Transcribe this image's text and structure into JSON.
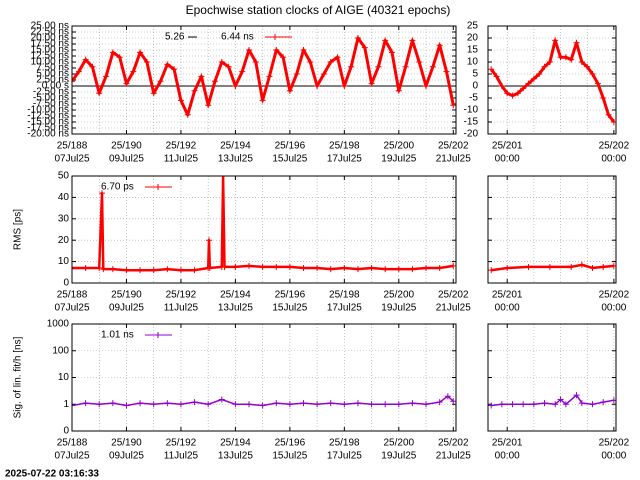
{
  "timestamp": "2025-07-22 03:16:33",
  "chart_data": [
    {
      "type": "line",
      "title": "Epochwise station clocks of AIGE (40321 epochs)",
      "legend": [
        "5.26",
        "6.44 ns"
      ],
      "grid": true,
      "zero_line": true,
      "xlim": [
        188,
        202.1
      ],
      "xticks": [
        {
          "value": 188,
          "label": "25/188",
          "date": "07Jul25"
        },
        {
          "value": 190,
          "label": "25/190",
          "date": "09Jul25"
        },
        {
          "value": 192,
          "label": "25/192",
          "date": "11Jul25"
        },
        {
          "value": 194,
          "label": "25/194",
          "date": "13Jul25"
        },
        {
          "value": 196,
          "label": "25/196",
          "date": "15Jul25"
        },
        {
          "value": 198,
          "label": "25/198",
          "date": "17Jul25"
        },
        {
          "value": 200,
          "label": "25/200",
          "date": "19Jul25"
        },
        {
          "value": 202,
          "label": "25/202",
          "date": "21Jul25"
        }
      ],
      "xminor": [
        189,
        191,
        193,
        195,
        197,
        199,
        201
      ],
      "ylim": [
        -20,
        25
      ],
      "yticks": [
        {
          "value": 25,
          "label": "25.00 ns"
        },
        {
          "value": 22.5,
          "label": "22.50 ns"
        },
        {
          "value": 20,
          "label": "20.00 ns"
        },
        {
          "value": 17.5,
          "label": "17.50 ns"
        },
        {
          "value": 15,
          "label": "15.00 ns"
        },
        {
          "value": 12.5,
          "label": "12.50 ns"
        },
        {
          "value": 10,
          "label": "10.00 ns"
        },
        {
          "value": 7.5,
          "label": "7.50 ns"
        },
        {
          "value": 5,
          "label": "5.00 ns"
        },
        {
          "value": 2.5,
          "label": "2.50 ns"
        },
        {
          "value": 0,
          "label": "0.00  s"
        },
        {
          "value": -2.5,
          "label": "-2.50 ns"
        },
        {
          "value": -5,
          "label": "-5.00 ns"
        },
        {
          "value": -7.5,
          "label": "-7.50 ns"
        },
        {
          "value": -10,
          "label": "-10.00 ns"
        },
        {
          "value": -12.5,
          "label": "-12.50 ns"
        },
        {
          "value": -15,
          "label": "-15.00 ns"
        },
        {
          "value": -17.5,
          "label": "-17.50 ns"
        },
        {
          "value": -20,
          "label": "-20.00 ns"
        }
      ],
      "series": [
        {
          "color": "#ff0000",
          "x": [
            188,
            188.25,
            188.5,
            188.75,
            189,
            189.25,
            189.5,
            189.75,
            190,
            190.25,
            190.5,
            190.75,
            191,
            191.25,
            191.5,
            191.75,
            192,
            192.25,
            192.5,
            192.75,
            193,
            193.25,
            193.5,
            193.75,
            194,
            194.25,
            194.5,
            194.75,
            195,
            195.25,
            195.5,
            195.75,
            196,
            196.25,
            196.5,
            196.75,
            197,
            197.25,
            197.5,
            197.75,
            198,
            198.25,
            198.5,
            198.75,
            199,
            199.25,
            199.5,
            199.75,
            200,
            200.25,
            200.5,
            200.75,
            201,
            201.25,
            201.5,
            201.75,
            202
          ],
          "values": [
            2,
            6,
            11,
            8,
            -3,
            4,
            14,
            12,
            1,
            6,
            14,
            10,
            -3,
            2,
            9,
            7,
            -6,
            -12,
            -2,
            4,
            -8,
            2,
            10,
            8,
            0,
            6,
            15,
            10,
            -6,
            4,
            15,
            12,
            -2,
            5,
            15,
            10,
            0,
            5,
            10,
            12,
            0,
            8,
            20,
            16,
            1,
            8,
            19,
            14,
            -2,
            8,
            19,
            10,
            0,
            8,
            17,
            6,
            -8
          ]
        }
      ]
    },
    {
      "type": "line",
      "grid": true,
      "zero_line": true,
      "xlim": [
        200.82,
        202.02
      ],
      "xticks": [
        {
          "value": 201,
          "label": "25/201",
          "date": "00:00"
        },
        {
          "value": 202,
          "label": "25/202",
          "date": "00:00"
        }
      ],
      "xminor": [
        201.25,
        201.5,
        201.75
      ],
      "ylim": [
        -20,
        25
      ],
      "yticks": [
        25,
        20,
        15,
        10,
        5,
        0,
        -5,
        -10,
        -15,
        -20
      ],
      "series": [
        {
          "color": "#ff0000",
          "x": [
            200.85,
            200.9,
            200.95,
            201.0,
            201.05,
            201.1,
            201.15,
            201.2,
            201.25,
            201.3,
            201.35,
            201.4,
            201.45,
            201.5,
            201.55,
            201.6,
            201.65,
            201.7,
            201.75,
            201.8,
            201.85,
            201.9,
            201.95,
            202.0
          ],
          "values": [
            7,
            4,
            0,
            -3,
            -4,
            -3,
            -1,
            1,
            3,
            5,
            8,
            10,
            19,
            12,
            12,
            11,
            18,
            10,
            8,
            5,
            1,
            -5,
            -12,
            -15
          ]
        }
      ]
    },
    {
      "type": "line",
      "ylabel": "RMS [ps]",
      "legend": [
        "6.70 ps"
      ],
      "grid": true,
      "xlim": [
        188,
        202.1
      ],
      "xticks": [
        {
          "value": 188,
          "label": "25/188",
          "date": "07Jul25"
        },
        {
          "value": 190,
          "label": "25/190",
          "date": "09Jul25"
        },
        {
          "value": 192,
          "label": "25/192",
          "date": "11Jul25"
        },
        {
          "value": 194,
          "label": "25/194",
          "date": "13Jul25"
        },
        {
          "value": 196,
          "label": "25/196",
          "date": "15Jul25"
        },
        {
          "value": 198,
          "label": "25/198",
          "date": "17Jul25"
        },
        {
          "value": 200,
          "label": "25/200",
          "date": "19Jul25"
        },
        {
          "value": 202,
          "label": "25/202",
          "date": "21Jul25"
        }
      ],
      "xminor": [
        189,
        191,
        193,
        195,
        197,
        199,
        201
      ],
      "ylim": [
        0,
        50
      ],
      "yticks": [
        0,
        10,
        20,
        30,
        40,
        50
      ],
      "series": [
        {
          "color": "#ff0000",
          "x": [
            188,
            188.5,
            189,
            189.1,
            189.15,
            189.5,
            190,
            190.5,
            191,
            191.5,
            192,
            192.5,
            193,
            193.03,
            193.06,
            193.5,
            193.55,
            193.6,
            194,
            194.5,
            195,
            195.5,
            196,
            196.5,
            197,
            197.5,
            198,
            198.5,
            199,
            199.5,
            200,
            200.5,
            201,
            201.5,
            202
          ],
          "values": [
            7,
            7,
            7,
            42,
            6.5,
            6.5,
            6,
            6,
            6,
            6.5,
            6,
            6,
            7,
            20,
            7,
            7.5,
            50,
            7.5,
            7.5,
            8,
            7.5,
            7.5,
            7.5,
            7,
            7,
            6.5,
            7,
            6.5,
            7,
            6.5,
            6.5,
            6.5,
            7,
            7,
            8
          ]
        }
      ]
    },
    {
      "type": "line",
      "grid": true,
      "ytick_labels": false,
      "xlim": [
        200.82,
        202.02
      ],
      "xticks": [
        {
          "value": 201,
          "label": "25/201",
          "date": "00:00"
        },
        {
          "value": 202,
          "label": "25/202",
          "date": "00:00"
        }
      ],
      "xminor": [
        201.25,
        201.5,
        201.75
      ],
      "ylim": [
        0,
        50
      ],
      "yticks": [
        0,
        10,
        20,
        30,
        40,
        50
      ],
      "series": [
        {
          "color": "#ff0000",
          "x": [
            200.85,
            201.0,
            201.2,
            201.4,
            201.6,
            201.7,
            201.8,
            201.9,
            202.0
          ],
          "values": [
            6,
            7,
            7.5,
            7.5,
            7.5,
            8.5,
            7,
            7.5,
            8
          ]
        }
      ]
    },
    {
      "type": "line",
      "ylabel": "Sig. of lin. fit/h [ns]",
      "legend": [
        "1.01 ns"
      ],
      "grid": true,
      "log_y": true,
      "xlim": [
        188,
        202.1
      ],
      "xticks": [
        {
          "value": 188,
          "label": "25/188",
          "date": "07Jul25"
        },
        {
          "value": 190,
          "label": "25/190",
          "date": "09Jul25"
        },
        {
          "value": 192,
          "label": "25/192",
          "date": "11Jul25"
        },
        {
          "value": 194,
          "label": "25/194",
          "date": "13Jul25"
        },
        {
          "value": 196,
          "label": "25/196",
          "date": "15Jul25"
        },
        {
          "value": 198,
          "label": "25/198",
          "date": "17Jul25"
        },
        {
          "value": 200,
          "label": "25/200",
          "date": "19Jul25"
        },
        {
          "value": 202,
          "label": "25/202",
          "date": "21Jul25"
        }
      ],
      "xminor": [
        189,
        191,
        193,
        195,
        197,
        199,
        201
      ],
      "ylim": [
        0.1,
        1000
      ],
      "yticks": [
        {
          "value": 0.1,
          "label": "0"
        },
        1,
        10,
        100,
        1000
      ],
      "series": [
        {
          "color": "#9400d3",
          "x": [
            188,
            188.5,
            189,
            189.5,
            190,
            190.5,
            191,
            191.5,
            192,
            192.5,
            193,
            193.5,
            194,
            194.5,
            195,
            195.5,
            196,
            196.5,
            197,
            197.5,
            198,
            198.5,
            199,
            199.5,
            200,
            200.5,
            201,
            201.5,
            201.8,
            202
          ],
          "values": [
            0.9,
            1.1,
            1.0,
            1.1,
            0.9,
            1.1,
            1.0,
            1.1,
            1.0,
            1.2,
            1.0,
            1.5,
            1.0,
            1.0,
            0.9,
            1.1,
            1.0,
            1.1,
            1.0,
            1.1,
            1.0,
            1.1,
            1.0,
            1.0,
            1.0,
            1.1,
            1.0,
            1.2,
            2.0,
            1.3
          ]
        }
      ]
    },
    {
      "type": "line",
      "grid": true,
      "log_y": true,
      "ytick_labels": false,
      "xlim": [
        200.82,
        202.02
      ],
      "xticks": [
        {
          "value": 201,
          "label": "25/201",
          "date": "00:00"
        },
        {
          "value": 202,
          "label": "25/202",
          "date": "00:00"
        }
      ],
      "xminor": [
        201.25,
        201.5,
        201.75
      ],
      "ylim": [
        0.1,
        1000
      ],
      "yticks": [
        0.1,
        1,
        10,
        100,
        1000
      ],
      "series": [
        {
          "color": "#9400d3",
          "x": [
            200.85,
            200.95,
            201.05,
            201.15,
            201.25,
            201.35,
            201.45,
            201.5,
            201.55,
            201.65,
            201.7,
            201.8,
            201.9,
            202.0
          ],
          "values": [
            0.9,
            1.0,
            1.0,
            1.0,
            1.0,
            1.1,
            1.0,
            1.5,
            1.0,
            2.2,
            1.1,
            1.0,
            1.2,
            1.4
          ]
        }
      ]
    }
  ]
}
